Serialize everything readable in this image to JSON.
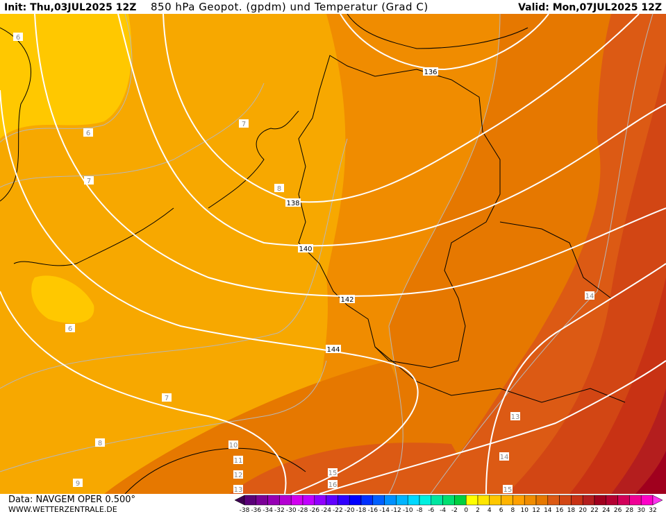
{
  "header": {
    "init": "Init: Thu,03JUL2025 12Z",
    "title": "850 hPa Geopot. (gpdm) und Temperatur (Grad C)",
    "valid": "Valid: Mon,07JUL2025 12Z"
  },
  "footer": {
    "source": "Data: NAVGEM OPER 0.500°",
    "site": "WWW.WETTERZENTRALE.DE"
  },
  "map": {
    "isobar_labels": [
      136,
      138,
      140,
      142,
      144
    ],
    "isotherm_labels": [
      6,
      6,
      7,
      7,
      8,
      14,
      6,
      7,
      8,
      9,
      10,
      11,
      12,
      13,
      15,
      16,
      13,
      14,
      15
    ]
  },
  "colorbar": {
    "ticks": [
      -38,
      -36,
      -34,
      -32,
      -30,
      -28,
      -26,
      -24,
      -22,
      -20,
      -18,
      -16,
      -14,
      -12,
      -10,
      -8,
      -6,
      -4,
      -2,
      0,
      2,
      4,
      6,
      8,
      10,
      12,
      14,
      16,
      18,
      20,
      22,
      24,
      26,
      28,
      30,
      32
    ],
    "colors": [
      "#3c0050",
      "#5a0078",
      "#7a0096",
      "#9600b4",
      "#b400d2",
      "#d200f0",
      "#c000ff",
      "#9000ff",
      "#6000ff",
      "#3000ff",
      "#0000ff",
      "#0030ff",
      "#0060ff",
      "#0090ff",
      "#00b4ff",
      "#00d8ff",
      "#00f0e0",
      "#00e6a0",
      "#00e070",
      "#00d040",
      "#ffff00",
      "#ffe600",
      "#ffc800",
      "#ffb400",
      "#ffa000",
      "#f08c00",
      "#e67800",
      "#dc5a14",
      "#d24614",
      "#c83214",
      "#b41e1e",
      "#a0001e",
      "#b40032",
      "#d2005a",
      "#f00096",
      "#ff00c8",
      "#ff32f0"
    ]
  }
}
